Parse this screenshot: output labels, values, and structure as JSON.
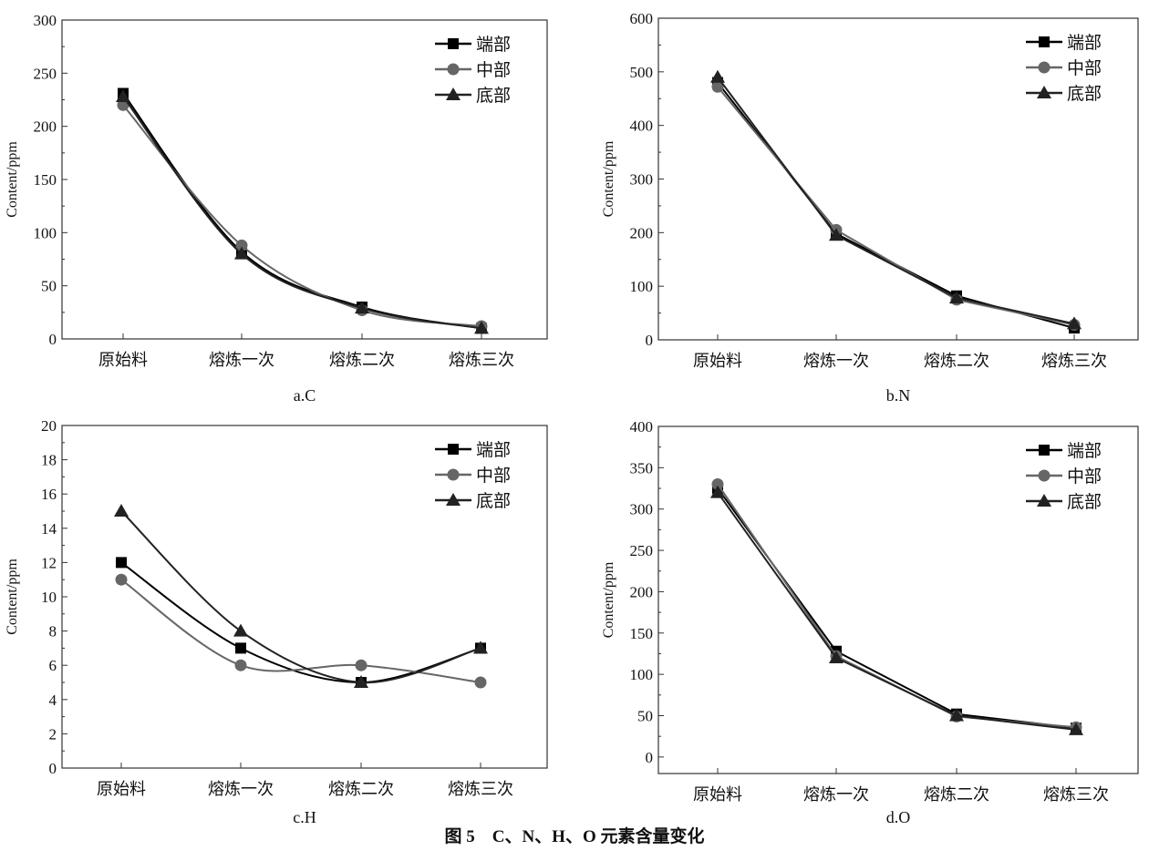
{
  "caption": "图 5　C、N、H、O 元素含量变化",
  "series_colors": {
    "端部": "#000000",
    "中部": "#666666",
    "底部": "#222222"
  },
  "series_markers": {
    "端部": "square",
    "中部": "circle",
    "底部": "triangle"
  },
  "chart_data": [
    {
      "type": "line",
      "smooth": true,
      "sublabel": "a.C",
      "ylabel": "Content/ppm",
      "categories": [
        "原始料",
        "熔炼一次",
        "熔炼二次",
        "熔炼三次"
      ],
      "ylim": [
        0,
        300
      ],
      "yticks": [
        0,
        50,
        100,
        150,
        200,
        250,
        300
      ],
      "legend": "top-right",
      "grid": false,
      "series": [
        {
          "name": "端部",
          "values": [
            231,
            82,
            30,
            10
          ]
        },
        {
          "name": "中部",
          "values": [
            220,
            88,
            27,
            12
          ]
        },
        {
          "name": "底部",
          "values": [
            228,
            80,
            29,
            10
          ]
        }
      ]
    },
    {
      "type": "line",
      "smooth": false,
      "sublabel": "b.N",
      "ylabel": "Content/ppm",
      "categories": [
        "原始料",
        "熔炼一次",
        "熔炼二次",
        "熔炼三次"
      ],
      "ylim": [
        0,
        600
      ],
      "yticks": [
        0,
        100,
        200,
        300,
        400,
        500,
        600
      ],
      "legend": "top-right",
      "grid": false,
      "series": [
        {
          "name": "端部",
          "values": [
            480,
            198,
            82,
            22
          ]
        },
        {
          "name": "中部",
          "values": [
            472,
            205,
            75,
            28
          ]
        },
        {
          "name": "底部",
          "values": [
            490,
            195,
            78,
            30
          ]
        }
      ]
    },
    {
      "type": "line",
      "smooth": true,
      "sublabel": "c.H",
      "ylabel": "Content/ppm",
      "categories": [
        "原始料",
        "熔炼一次",
        "熔炼二次",
        "熔炼三次"
      ],
      "ylim": [
        0,
        20
      ],
      "yticks": [
        0,
        2,
        4,
        6,
        8,
        10,
        12,
        14,
        16,
        18,
        20
      ],
      "legend": "top-right",
      "grid": false,
      "series": [
        {
          "name": "端部",
          "values": [
            12,
            7,
            5,
            7
          ]
        },
        {
          "name": "中部",
          "values": [
            11,
            6,
            6,
            5
          ]
        },
        {
          "name": "底部",
          "values": [
            15,
            8,
            5,
            7
          ]
        }
      ]
    },
    {
      "type": "line",
      "smooth": false,
      "sublabel": "d.O",
      "ylabel": "Content/ppm",
      "categories": [
        "原始料",
        "熔炼一次",
        "熔炼二次",
        "熔炼三次"
      ],
      "ylim": [
        -20,
        400
      ],
      "yticks": [
        0,
        50,
        100,
        150,
        200,
        250,
        300,
        350,
        400
      ],
      "legend": "top-right",
      "grid": false,
      "series": [
        {
          "name": "端部",
          "values": [
            325,
            128,
            52,
            35
          ]
        },
        {
          "name": "中部",
          "values": [
            330,
            122,
            49,
            36
          ]
        },
        {
          "name": "底部",
          "values": [
            320,
            120,
            50,
            33
          ]
        }
      ]
    }
  ]
}
